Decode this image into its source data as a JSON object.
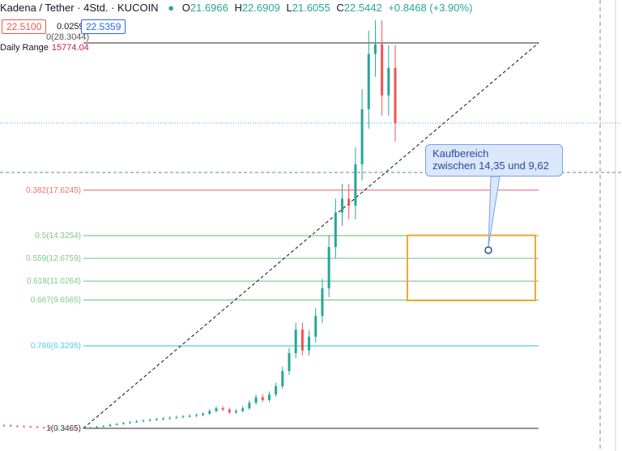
{
  "header": {
    "symbol": "Kadena / Tether · 4Std. · KUCOIN",
    "o_label": "O",
    "o_value": "21.6966",
    "h_label": "H",
    "h_value": "22.6909",
    "l_label": "L",
    "l_value": "21.6055",
    "c_label": "C",
    "c_value": "22.5442",
    "change": "+0.8468 (+3.90%)"
  },
  "quote": {
    "sell": "22.5100",
    "spread": "0.0259",
    "buy": "22.5359"
  },
  "daily_range": {
    "label": "Daily Range",
    "value": "15774.04"
  },
  "callout": {
    "line1": "Kaufbereich",
    "line2": "zwischen 14,35 und 9,62"
  },
  "colors": {
    "fib_0382": "#e57373",
    "fib_green": "#81c784",
    "fib_0786": "#4dd0e1",
    "fib_edge": "#555555",
    "candle_up": "#26a69a",
    "candle_down": "#ef5350",
    "buy_box": "#f0a830",
    "hline_dotted": "#42a5f5"
  },
  "chart_data": {
    "type": "candlestick",
    "y_axis": "price",
    "fib_levels": [
      {
        "ratio": "0",
        "price": 28.3044,
        "label": "0(28.3044)"
      },
      {
        "ratio": "0.382",
        "price": 17.6245,
        "label": "0.382(17.6245)"
      },
      {
        "ratio": "0.5",
        "price": 14.3254,
        "label": "0.5(14.3254)"
      },
      {
        "ratio": "0.559",
        "price": 12.6759,
        "label": "0.559(12.6759)"
      },
      {
        "ratio": "0.618",
        "price": 11.0264,
        "label": "0.618(11.0264)"
      },
      {
        "ratio": "0.667",
        "price": 9.6565,
        "label": "0.667(9.6565)"
      },
      {
        "ratio": "0.786",
        "price": 6.3295,
        "label": "0.786(6.3295)"
      },
      {
        "ratio": "1",
        "price": 0.3465,
        "label": "1(0.3465)"
      }
    ],
    "buy_zone": {
      "top": 14.35,
      "bottom": 9.62
    },
    "horizontal_lines": [
      22.69,
      17.6245
    ],
    "price_path": [
      0.55,
      0.5,
      0.48,
      0.46,
      0.45,
      0.4,
      0.38,
      0.35,
      0.36,
      0.37,
      0.36,
      0.35,
      0.38,
      0.4,
      0.45,
      0.5,
      0.6,
      0.65,
      0.72,
      0.78,
      0.85,
      0.9,
      0.95,
      1.0,
      1.05,
      1.1,
      1.15,
      1.2,
      1.25,
      1.3,
      1.4,
      1.6,
      1.8,
      1.7,
      1.5,
      1.6,
      1.8,
      2.2,
      2.6,
      2.4,
      2.8,
      3.4,
      4.5,
      5.8,
      7.5,
      6.0,
      7.0,
      8.5,
      10.5,
      13.5,
      16.0,
      17.0,
      16.5,
      19.5,
      23.5,
      27.5,
      28.2,
      24.5,
      26.5,
      22.5
    ]
  }
}
